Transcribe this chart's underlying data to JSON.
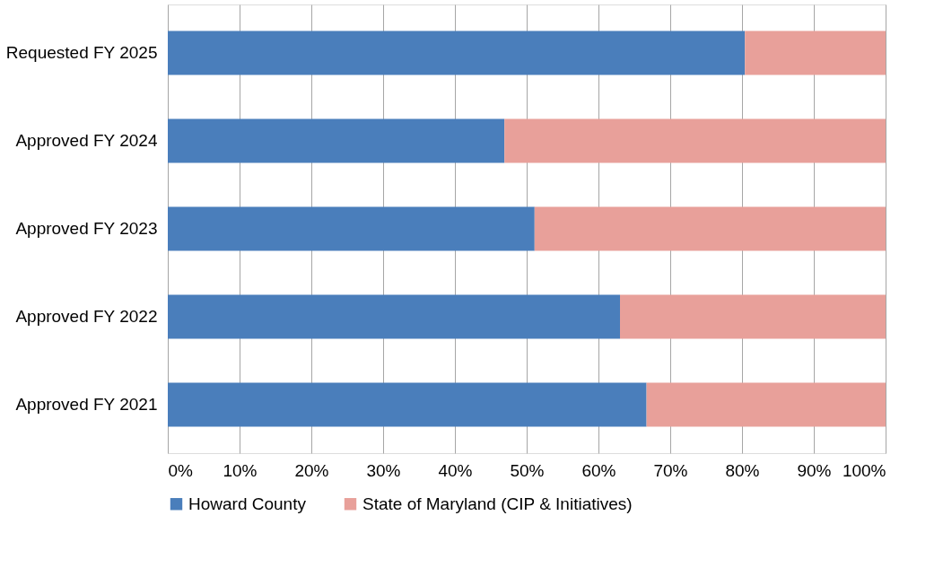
{
  "chart_data": {
    "type": "bar",
    "orientation": "horizontal",
    "stacked": true,
    "categories": [
      "Requested FY 2025",
      "Approved FY 2024",
      "Approved FY 2023",
      "Approved FY 2022",
      "Approved FY 2021"
    ],
    "series": [
      {
        "name": "Howard County",
        "color": "#4a7ebb",
        "values": [
          80.4,
          46.9,
          51.1,
          63.0,
          66.7
        ]
      },
      {
        "name": "State of Maryland (CIP & Initiatives)",
        "color": "#e8a09a",
        "values": [
          19.6,
          53.1,
          48.9,
          37.0,
          33.3
        ]
      }
    ],
    "xlim": [
      0,
      100
    ],
    "xticks": [
      {
        "value": 0,
        "label": "0%"
      },
      {
        "value": 10,
        "label": "10%"
      },
      {
        "value": 20,
        "label": "20%"
      },
      {
        "value": 30,
        "label": "30%"
      },
      {
        "value": 40,
        "label": "40%"
      },
      {
        "value": 50,
        "label": "50%"
      },
      {
        "value": 60,
        "label": "60%"
      },
      {
        "value": 70,
        "label": "70%"
      },
      {
        "value": 80,
        "label": "80%"
      },
      {
        "value": 90,
        "label": "90%"
      },
      {
        "value": 100,
        "label": "100%"
      }
    ],
    "grid": "x",
    "legend": "bottom"
  }
}
